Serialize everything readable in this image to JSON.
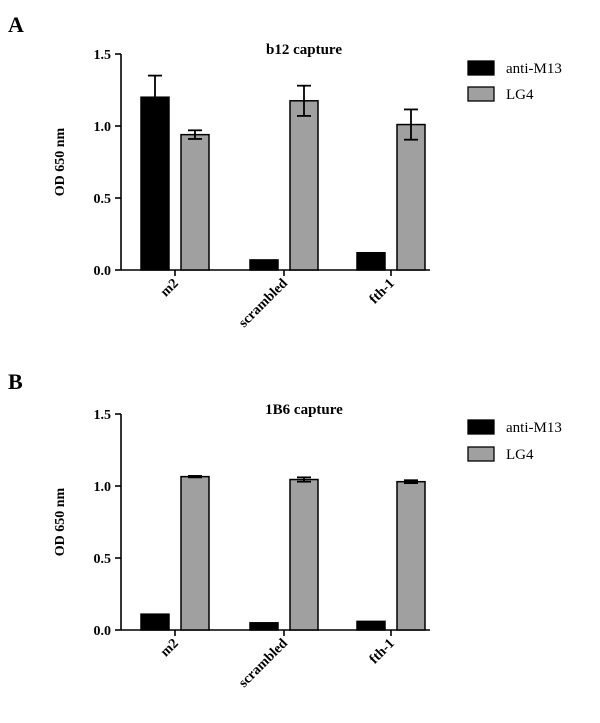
{
  "chart_data": [
    {
      "type": "bar",
      "panel": "A",
      "title": "b12 capture",
      "xlabel": "",
      "ylabel": "OD 650 nm",
      "ylim": [
        0,
        1.5
      ],
      "yticks": [
        "0.0",
        "0.5",
        "1.0",
        "1.5"
      ],
      "categories": [
        "m2",
        "scrambled",
        "fth-1"
      ],
      "legend_position": "right",
      "series": [
        {
          "name": "anti-M13",
          "color": "#000000",
          "values": [
            1.2,
            0.07,
            0.12
          ],
          "errors": [
            0.15,
            0.0,
            0.0
          ]
        },
        {
          "name": "LG4",
          "color": "#a0a0a0",
          "values": [
            0.94,
            1.175,
            1.01
          ],
          "errors": [
            0.03,
            0.105,
            0.105
          ]
        }
      ]
    },
    {
      "type": "bar",
      "panel": "B",
      "title": "1B6 capture",
      "xlabel": "",
      "ylabel": "OD 650 nm",
      "ylim": [
        0,
        1.5
      ],
      "yticks": [
        "0.0",
        "0.5",
        "1.0",
        "1.5"
      ],
      "categories": [
        "m2",
        "scrambled",
        "fth-1"
      ],
      "legend_position": "right",
      "series": [
        {
          "name": "anti-M13",
          "color": "#000000",
          "values": [
            0.11,
            0.05,
            0.06
          ],
          "errors": [
            0.0,
            0.0,
            0.0
          ]
        },
        {
          "name": "LG4",
          "color": "#a0a0a0",
          "values": [
            1.065,
            1.045,
            1.03
          ],
          "errors": [
            0.005,
            0.015,
            0.01
          ]
        }
      ]
    }
  ]
}
